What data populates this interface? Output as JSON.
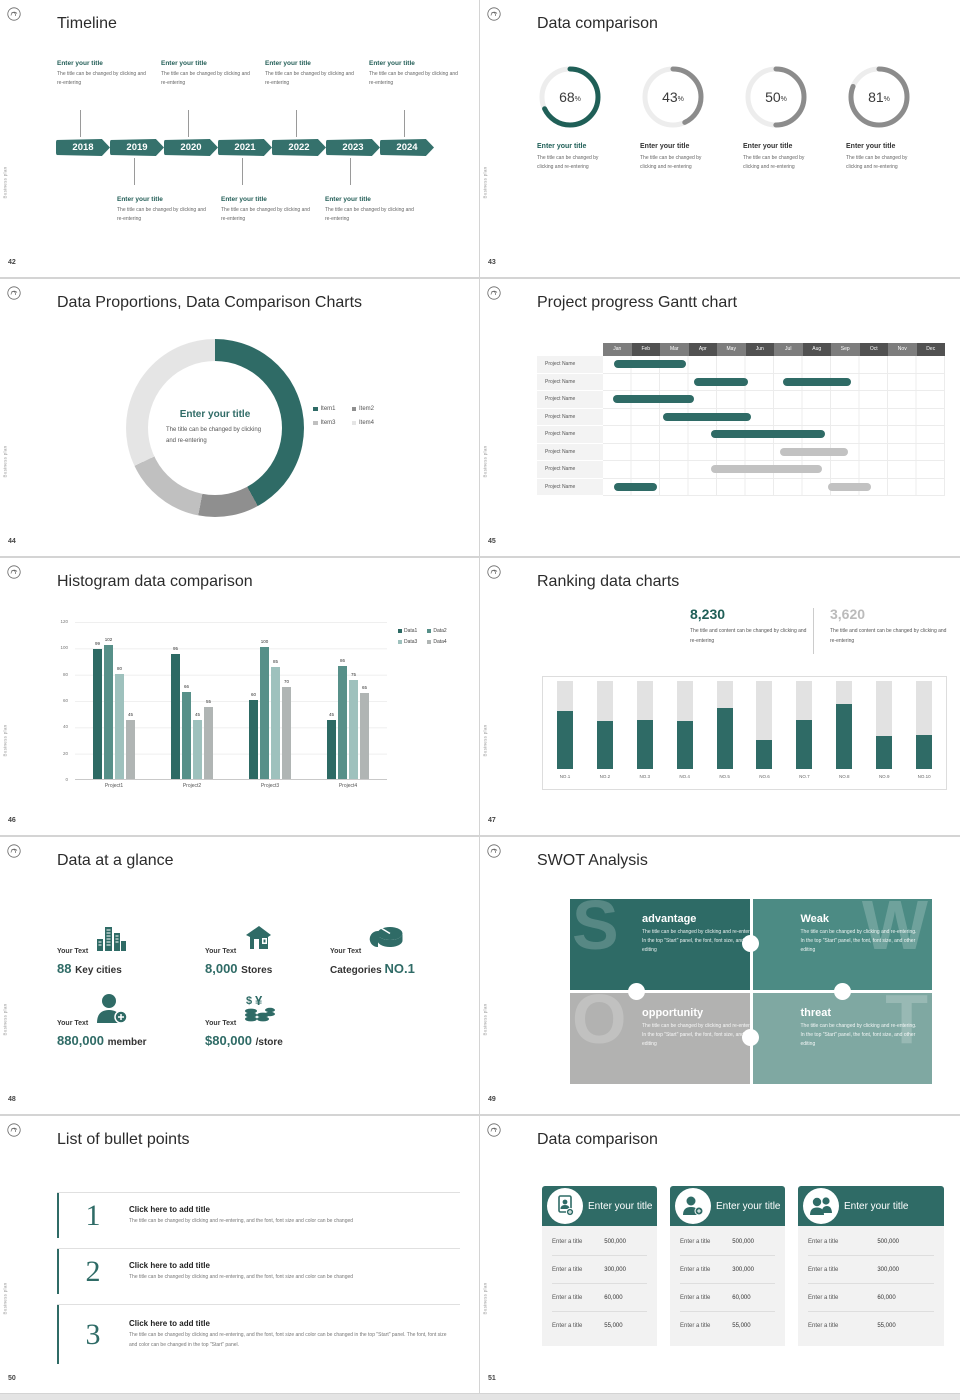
{
  "common": {
    "brand": "Business plan",
    "colors": {
      "teal": "#2f6b66",
      "teal_dark": "#1f5f57",
      "teal_mid": "#4c8b84",
      "teal_light": "#7fa8a2",
      "gray_bar": "#c2c2c2",
      "ring_gray": "#8c8c8c",
      "ring_track": "#ededed"
    }
  },
  "slides": {
    "s42": {
      "page": "42",
      "title": "Timeline",
      "entry_title": "Enter your title",
      "entry_desc": "The title can be changed by clicking and re-entering",
      "years": [
        "2018",
        "2019",
        "2020",
        "2021",
        "2022",
        "2023",
        "2024"
      ],
      "top_entry_count": 4,
      "bottom_entry_count": 3
    },
    "s43": {
      "page": "43",
      "title": "Data comparison",
      "entry_title": "Enter your title",
      "entry_desc": "The title can be changed by clicking and re-entering",
      "chart_data": {
        "type": "donut-progress",
        "values": [
          68,
          43,
          50,
          81
        ],
        "unit": "%",
        "colors": [
          "#1f5f57",
          "#8c8c8c",
          "#8c8c8c",
          "#8c8c8c"
        ],
        "title_colors": [
          "#1f5f57",
          "#333333",
          "#333333",
          "#333333"
        ]
      }
    },
    "s44": {
      "page": "44",
      "title": "Data Proportions, Data Comparison Charts",
      "center_title": "Enter your title",
      "center_desc": "The title can be changed by clicking and re-entering",
      "chart_data": {
        "type": "pie",
        "legend_position": "right",
        "segments": [
          {
            "label": "Item1",
            "pct": 42,
            "color": "#2f6b66"
          },
          {
            "label": "Item2",
            "pct": 11,
            "color": "#8f8f8f"
          },
          {
            "label": "Item3",
            "pct": 15,
            "color": "#c0c0c0"
          },
          {
            "label": "Item4",
            "pct": 32,
            "color": "#e5e5e5"
          }
        ]
      }
    },
    "s45": {
      "page": "45",
      "title": "Project progress Gantt chart",
      "chart_data": {
        "type": "gantt",
        "row_label": "Project Name",
        "months": [
          "Jan",
          "Feb",
          "Mar",
          "Apr",
          "May",
          "Jun",
          "Jul",
          "Aug",
          "Sep",
          "Oct",
          "Nov",
          "Dec"
        ],
        "month_colors": [
          "#7d7d7d",
          "#515151"
        ],
        "rows": [
          {
            "bars": [
              {
                "start": 0.4,
                "end": 2.9,
                "color": "teal"
              }
            ]
          },
          {
            "bars": [
              {
                "start": 3.2,
                "end": 5.1,
                "color": "teal"
              },
              {
                "start": 6.3,
                "end": 8.7,
                "color": "teal"
              }
            ]
          },
          {
            "bars": [
              {
                "start": 0.35,
                "end": 3.2,
                "color": "teal"
              }
            ]
          },
          {
            "bars": [
              {
                "start": 2.1,
                "end": 5.2,
                "color": "teal"
              }
            ]
          },
          {
            "bars": [
              {
                "start": 3.8,
                "end": 7.8,
                "color": "teal"
              }
            ]
          },
          {
            "bars": [
              {
                "start": 6.2,
                "end": 8.6,
                "color": "gray"
              }
            ]
          },
          {
            "bars": [
              {
                "start": 3.8,
                "end": 7.7,
                "color": "gray"
              }
            ]
          },
          {
            "bars": [
              {
                "start": 0.4,
                "end": 1.9,
                "color": "teal"
              },
              {
                "start": 7.9,
                "end": 9.4,
                "color": "gray"
              }
            ]
          }
        ]
      }
    },
    "s46": {
      "page": "46",
      "title": "Histogram data comparison",
      "chart_data": {
        "type": "bar",
        "ylim": [
          0,
          120
        ],
        "yticks": [
          120,
          100,
          80,
          60,
          40,
          20,
          0
        ],
        "categories": [
          "Project1",
          "Project2",
          "Project3",
          "Project4"
        ],
        "series": [
          {
            "name": "Data1",
            "color": "#2d6a64",
            "values": [
              99,
              95,
              60,
              45
            ]
          },
          {
            "name": "Data2",
            "color": "#579089",
            "values": [
              102,
              66,
              100,
              86
            ]
          },
          {
            "name": "Data3",
            "color": "#9ec1bd",
            "values": [
              80,
              45,
              85,
              75
            ]
          },
          {
            "name": "Data4",
            "color": "#b0b5b4",
            "values": [
              45,
              55,
              70,
              65
            ]
          }
        ]
      }
    },
    "s47": {
      "page": "47",
      "title": "Ranking data charts",
      "stat_left": {
        "value": "8,230",
        "color": "#1f5f57",
        "desc": "The title and content can be changed by clicking and re-entering"
      },
      "stat_right": {
        "value": "3,620",
        "color": "#bbbbbb",
        "desc": "The title and content can be changed by clicking and re-entering"
      },
      "chart_data": {
        "type": "bar",
        "note": "teal fill percent of gray track",
        "categories": [
          "NO.1",
          "NO.2",
          "NO.3",
          "NO.4",
          "NO.5",
          "NO.6",
          "NO.7",
          "NO.8",
          "NO.9",
          "NO.10"
        ],
        "values": [
          66,
          54,
          56,
          55,
          69,
          33,
          56,
          74,
          38,
          39
        ],
        "ylim": [
          0,
          100
        ]
      }
    },
    "s48": {
      "page": "48",
      "title": "Data at a glance",
      "label": "Your Text",
      "items": [
        {
          "icon": "city-icon",
          "value": "88",
          "unit": "Key cities"
        },
        {
          "icon": "store-icon",
          "value": "8,000",
          "unit": "Stores"
        },
        {
          "icon": "pie-icon",
          "prefix": "Categories",
          "value": "NO.1"
        },
        {
          "icon": "member-icon",
          "value": "880,000",
          "unit": "member"
        },
        {
          "icon": "coins-icon",
          "value": "$80,000",
          "unit": "/store"
        }
      ]
    },
    "s49": {
      "page": "49",
      "title": "SWOT Analysis",
      "desc": "The title can be changed by clicking and re-entering. In the top \"Start\" panel, the font, font size, and other editing",
      "quads": [
        {
          "letter": "S",
          "title": "advantage",
          "color": "#2e6b66",
          "side": "left"
        },
        {
          "letter": "W",
          "title": "Weak",
          "color": "#4c8b84",
          "side": "right"
        },
        {
          "letter": "O",
          "title": "opportunity",
          "color": "#b2b2b1",
          "side": "left"
        },
        {
          "letter": "T",
          "title": "threat",
          "color": "#7fa8a2",
          "side": "right"
        }
      ]
    },
    "s50": {
      "page": "50",
      "title": "List of bullet points",
      "items": [
        {
          "num": "1",
          "title": "Click here to add title",
          "desc": "The title can be changed by clicking and re-entering, and the font, font size and color can be changed"
        },
        {
          "num": "2",
          "title": "Click here to add title",
          "desc": "The title can be changed by clicking and re-entering, and the font, font size and color can be changed"
        },
        {
          "num": "3",
          "title": "Click here to add title",
          "desc": "The title can be changed by clicking and re-entering, and the font, font size and color can be changed in the top \"Start\" panel. The font, font size and color can be changed in the top \"Start\" panel."
        }
      ]
    },
    "s51": {
      "page": "51",
      "title": "Data comparison",
      "cards": [
        {
          "icon": "person-card-icon",
          "title": "Enter your title",
          "rows": [
            [
              "Enter a title",
              "500,000"
            ],
            [
              "Enter a title",
              "300,000"
            ],
            [
              "Enter a title",
              "60,000"
            ],
            [
              "Enter a title",
              "55,000"
            ]
          ]
        },
        {
          "icon": "person-add-icon",
          "title": "Enter your title",
          "rows": [
            [
              "Enter a title",
              "500,000"
            ],
            [
              "Enter a title",
              "300,000"
            ],
            [
              "Enter a title",
              "60,000"
            ],
            [
              "Enter a title",
              "55,000"
            ]
          ]
        },
        {
          "icon": "people-icon",
          "title": "Enter your title",
          "rows": [
            [
              "Enter a title",
              "500,000"
            ],
            [
              "Enter a title",
              "300,000"
            ],
            [
              "Enter a title",
              "60,000"
            ],
            [
              "Enter a title",
              "55,000"
            ]
          ]
        }
      ]
    }
  }
}
